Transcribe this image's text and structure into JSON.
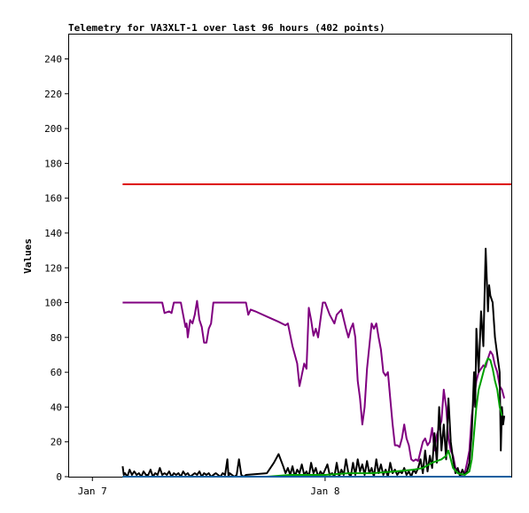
{
  "chart_data": {
    "type": "line",
    "title": "Telemetry for VA3XLT-1 over last 96 hours (402 points)",
    "xlabel": "",
    "ylabel": "Values",
    "ylim": [
      0,
      254
    ],
    "yticks": [
      0,
      20,
      40,
      60,
      80,
      100,
      120,
      140,
      160,
      180,
      200,
      220,
      240
    ],
    "xlim": [
      -0.1,
      1.8
    ],
    "xticks": [
      {
        "value": 0,
        "label": "Jan 7"
      },
      {
        "value": 1,
        "label": "Jan 8"
      }
    ],
    "grid": false,
    "series": [
      {
        "color": "#dd0000",
        "points": [
          [
            0.13,
            168
          ],
          [
            1.8,
            168
          ]
        ]
      },
      {
        "color": "#800080",
        "points": [
          [
            0.13,
            100
          ],
          [
            0.24,
            100
          ],
          [
            0.3,
            100
          ],
          [
            0.31,
            94
          ],
          [
            0.33,
            95
          ],
          [
            0.34,
            94
          ],
          [
            0.35,
            100
          ],
          [
            0.38,
            100
          ],
          [
            0.39,
            93
          ],
          [
            0.4,
            86
          ],
          [
            0.405,
            88
          ],
          [
            0.41,
            80
          ],
          [
            0.42,
            90
          ],
          [
            0.43,
            88
          ],
          [
            0.44,
            93
          ],
          [
            0.45,
            101
          ],
          [
            0.46,
            90
          ],
          [
            0.47,
            86
          ],
          [
            0.48,
            77
          ],
          [
            0.49,
            77
          ],
          [
            0.5,
            85
          ],
          [
            0.51,
            88
          ],
          [
            0.52,
            100
          ],
          [
            0.57,
            100
          ],
          [
            0.63,
            100
          ],
          [
            0.66,
            100
          ],
          [
            0.67,
            93
          ],
          [
            0.68,
            96
          ],
          [
            0.7,
            95
          ],
          [
            0.75,
            92
          ],
          [
            0.8,
            89
          ],
          [
            0.83,
            87
          ],
          [
            0.84,
            88
          ],
          [
            0.86,
            75
          ],
          [
            0.88,
            65
          ],
          [
            0.89,
            52
          ],
          [
            0.91,
            65
          ],
          [
            0.92,
            62
          ],
          [
            0.93,
            97
          ],
          [
            0.94,
            90
          ],
          [
            0.95,
            81
          ],
          [
            0.96,
            85
          ],
          [
            0.97,
            80
          ],
          [
            0.98,
            90
          ],
          [
            0.99,
            100
          ],
          [
            1.0,
            100
          ],
          [
            1.02,
            93
          ],
          [
            1.04,
            88
          ],
          [
            1.05,
            93
          ],
          [
            1.07,
            96
          ],
          [
            1.09,
            85
          ],
          [
            1.1,
            80
          ],
          [
            1.11,
            85
          ],
          [
            1.12,
            88
          ],
          [
            1.13,
            80
          ],
          [
            1.14,
            55
          ],
          [
            1.15,
            45
          ],
          [
            1.16,
            30
          ],
          [
            1.17,
            40
          ],
          [
            1.18,
            62
          ],
          [
            1.19,
            75
          ],
          [
            1.2,
            88
          ],
          [
            1.21,
            85
          ],
          [
            1.22,
            88
          ],
          [
            1.23,
            80
          ],
          [
            1.24,
            73
          ],
          [
            1.25,
            60
          ],
          [
            1.26,
            58
          ],
          [
            1.27,
            60
          ],
          [
            1.28,
            45
          ],
          [
            1.29,
            30
          ],
          [
            1.3,
            18
          ],
          [
            1.31,
            18
          ],
          [
            1.32,
            17
          ],
          [
            1.33,
            22
          ],
          [
            1.34,
            30
          ],
          [
            1.35,
            22
          ],
          [
            1.36,
            18
          ],
          [
            1.37,
            10
          ],
          [
            1.38,
            9
          ],
          [
            1.39,
            10
          ],
          [
            1.4,
            9
          ],
          [
            1.42,
            20
          ],
          [
            1.43,
            22
          ],
          [
            1.44,
            18
          ],
          [
            1.45,
            20
          ],
          [
            1.46,
            28
          ],
          [
            1.47,
            15
          ],
          [
            1.48,
            24
          ],
          [
            1.49,
            28
          ],
          [
            1.5,
            32
          ],
          [
            1.51,
            50
          ],
          [
            1.52,
            40
          ],
          [
            1.53,
            22
          ],
          [
            1.54,
            15
          ],
          [
            1.55,
            12
          ],
          [
            1.56,
            5
          ],
          [
            1.57,
            4
          ],
          [
            1.58,
            2
          ],
          [
            1.59,
            1
          ],
          [
            1.6,
            2
          ],
          [
            1.61,
            8
          ],
          [
            1.62,
            15
          ],
          [
            1.63,
            35
          ],
          [
            1.64,
            45
          ],
          [
            1.65,
            55
          ],
          [
            1.66,
            60
          ],
          [
            1.67,
            62
          ],
          [
            1.68,
            64
          ],
          [
            1.69,
            63
          ],
          [
            1.7,
            68
          ],
          [
            1.71,
            72
          ],
          [
            1.72,
            70
          ],
          [
            1.73,
            64
          ],
          [
            1.74,
            60
          ],
          [
            1.75,
            52
          ],
          [
            1.76,
            50
          ],
          [
            1.77,
            45
          ]
        ]
      },
      {
        "color": "#000000",
        "points": [
          [
            0.13,
            6
          ],
          [
            0.135,
            1
          ],
          [
            0.14,
            2
          ],
          [
            0.15,
            0
          ],
          [
            0.16,
            4
          ],
          [
            0.17,
            1
          ],
          [
            0.18,
            3
          ],
          [
            0.19,
            1
          ],
          [
            0.2,
            2
          ],
          [
            0.21,
            0
          ],
          [
            0.22,
            3
          ],
          [
            0.23,
            1
          ],
          [
            0.24,
            1
          ],
          [
            0.25,
            4
          ],
          [
            0.26,
            0
          ],
          [
            0.27,
            2
          ],
          [
            0.28,
            1
          ],
          [
            0.29,
            5
          ],
          [
            0.3,
            1
          ],
          [
            0.31,
            2
          ],
          [
            0.32,
            1
          ],
          [
            0.33,
            3
          ],
          [
            0.34,
            0
          ],
          [
            0.35,
            2
          ],
          [
            0.36,
            1
          ],
          [
            0.37,
            2
          ],
          [
            0.38,
            0
          ],
          [
            0.39,
            3
          ],
          [
            0.4,
            1
          ],
          [
            0.41,
            2
          ],
          [
            0.42,
            0
          ],
          [
            0.43,
            1
          ],
          [
            0.44,
            2
          ],
          [
            0.45,
            1
          ],
          [
            0.46,
            3
          ],
          [
            0.47,
            0
          ],
          [
            0.48,
            2
          ],
          [
            0.49,
            1
          ],
          [
            0.5,
            2
          ],
          [
            0.51,
            0
          ],
          [
            0.52,
            1
          ],
          [
            0.53,
            2
          ],
          [
            0.54,
            1
          ],
          [
            0.55,
            0
          ],
          [
            0.56,
            2
          ],
          [
            0.57,
            1
          ],
          [
            0.58,
            10
          ],
          [
            0.585,
            0
          ],
          [
            0.59,
            2
          ],
          [
            0.6,
            1
          ],
          [
            0.61,
            0
          ],
          [
            0.62,
            1
          ],
          [
            0.63,
            10
          ],
          [
            0.64,
            1
          ],
          [
            0.65,
            0
          ],
          [
            0.66,
            1
          ],
          [
            0.75,
            2
          ],
          [
            0.78,
            8
          ],
          [
            0.8,
            13
          ],
          [
            0.82,
            6
          ],
          [
            0.83,
            2
          ],
          [
            0.84,
            5
          ],
          [
            0.85,
            1
          ],
          [
            0.86,
            6
          ],
          [
            0.87,
            0
          ],
          [
            0.88,
            4
          ],
          [
            0.89,
            2
          ],
          [
            0.9,
            7
          ],
          [
            0.91,
            1
          ],
          [
            0.92,
            3
          ],
          [
            0.93,
            0
          ],
          [
            0.94,
            8
          ],
          [
            0.95,
            2
          ],
          [
            0.96,
            5
          ],
          [
            0.97,
            0
          ],
          [
            0.98,
            3
          ],
          [
            0.99,
            1
          ],
          [
            1.0,
            4
          ],
          [
            1.01,
            7
          ],
          [
            1.02,
            1
          ],
          [
            1.03,
            2
          ],
          [
            1.04,
            0
          ],
          [
            1.05,
            8
          ],
          [
            1.06,
            0
          ],
          [
            1.07,
            4
          ],
          [
            1.08,
            1
          ],
          [
            1.09,
            10
          ],
          [
            1.1,
            2
          ],
          [
            1.11,
            0
          ],
          [
            1.12,
            8
          ],
          [
            1.13,
            1
          ],
          [
            1.14,
            10
          ],
          [
            1.15,
            3
          ],
          [
            1.16,
            7
          ],
          [
            1.17,
            1
          ],
          [
            1.18,
            9
          ],
          [
            1.19,
            2
          ],
          [
            1.2,
            5
          ],
          [
            1.21,
            0
          ],
          [
            1.22,
            10
          ],
          [
            1.23,
            2
          ],
          [
            1.24,
            7
          ],
          [
            1.25,
            1
          ],
          [
            1.26,
            4
          ],
          [
            1.27,
            0
          ],
          [
            1.28,
            8
          ],
          [
            1.29,
            2
          ],
          [
            1.3,
            4
          ],
          [
            1.31,
            1
          ],
          [
            1.32,
            3
          ],
          [
            1.33,
            2
          ],
          [
            1.34,
            5
          ],
          [
            1.35,
            1
          ],
          [
            1.36,
            3
          ],
          [
            1.37,
            0
          ],
          [
            1.38,
            4
          ],
          [
            1.39,
            2
          ],
          [
            1.4,
            5
          ],
          [
            1.41,
            10
          ],
          [
            1.42,
            2
          ],
          [
            1.43,
            15
          ],
          [
            1.44,
            3
          ],
          [
            1.45,
            12
          ],
          [
            1.46,
            5
          ],
          [
            1.47,
            25
          ],
          [
            1.48,
            8
          ],
          [
            1.49,
            40
          ],
          [
            1.5,
            15
          ],
          [
            1.51,
            30
          ],
          [
            1.52,
            10
          ],
          [
            1.53,
            45
          ],
          [
            1.54,
            20
          ],
          [
            1.55,
            10
          ],
          [
            1.56,
            2
          ],
          [
            1.57,
            5
          ],
          [
            1.58,
            0
          ],
          [
            1.59,
            4
          ],
          [
            1.6,
            1
          ],
          [
            1.61,
            3
          ],
          [
            1.62,
            8
          ],
          [
            1.63,
            25
          ],
          [
            1.64,
            60
          ],
          [
            1.645,
            40
          ],
          [
            1.65,
            85
          ],
          [
            1.66,
            60
          ],
          [
            1.67,
            95
          ],
          [
            1.68,
            75
          ],
          [
            1.69,
            131
          ],
          [
            1.7,
            95
          ],
          [
            1.705,
            110
          ],
          [
            1.71,
            104
          ],
          [
            1.72,
            100
          ],
          [
            1.73,
            80
          ],
          [
            1.74,
            70
          ],
          [
            1.75,
            60
          ],
          [
            1.755,
            15
          ],
          [
            1.76,
            40
          ],
          [
            1.765,
            30
          ],
          [
            1.77,
            35
          ]
        ]
      },
      {
        "color": "#00a000",
        "points": [
          [
            0.13,
            0
          ],
          [
            0.75,
            0
          ],
          [
            0.85,
            1
          ],
          [
            1.0,
            1
          ],
          [
            1.1,
            2
          ],
          [
            1.2,
            2
          ],
          [
            1.3,
            3
          ],
          [
            1.38,
            4
          ],
          [
            1.42,
            5
          ],
          [
            1.46,
            8
          ],
          [
            1.5,
            10
          ],
          [
            1.52,
            12
          ],
          [
            1.53,
            15
          ],
          [
            1.55,
            5
          ],
          [
            1.57,
            2
          ],
          [
            1.6,
            1
          ],
          [
            1.62,
            3
          ],
          [
            1.63,
            10
          ],
          [
            1.64,
            25
          ],
          [
            1.65,
            40
          ],
          [
            1.66,
            50
          ],
          [
            1.67,
            55
          ],
          [
            1.68,
            60
          ],
          [
            1.69,
            65
          ],
          [
            1.7,
            68
          ],
          [
            1.71,
            67
          ],
          [
            1.72,
            62
          ],
          [
            1.73,
            55
          ],
          [
            1.74,
            50
          ],
          [
            1.75,
            40
          ],
          [
            1.76,
            35
          ]
        ]
      },
      {
        "color": "#1060a0",
        "points": [
          [
            0.13,
            0
          ],
          [
            1.8,
            0
          ]
        ]
      }
    ]
  }
}
